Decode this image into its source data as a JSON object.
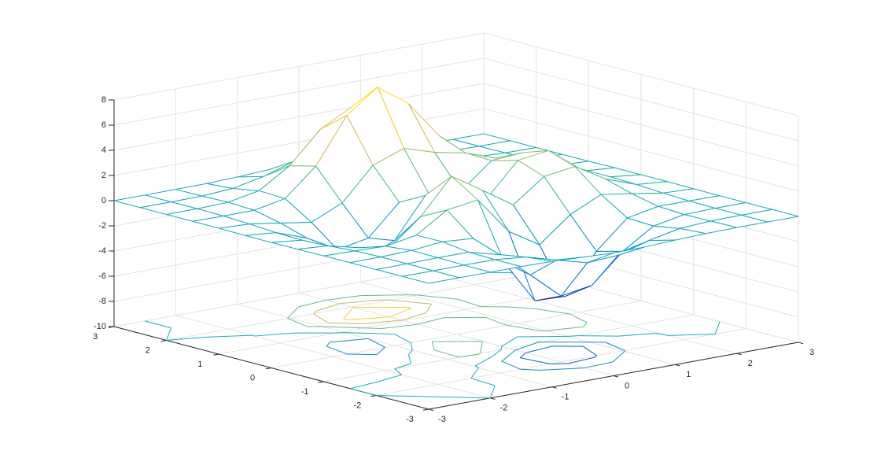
{
  "chart_data": {
    "type": "mesh",
    "x": [
      -3,
      -2.5,
      -2,
      -1.5,
      -1,
      -0.5,
      0,
      0.5,
      1,
      1.5,
      2,
      2.5,
      3
    ],
    "y": [
      -3,
      -2.5,
      -2,
      -1.5,
      -1,
      -0.5,
      0,
      0.5,
      1,
      1.5,
      2,
      2.5,
      3
    ],
    "z": [
      [
        0,
        0,
        0,
        0,
        -0.03,
        -0.14,
        -0.24,
        -0.22,
        -0.11,
        -0.03,
        0,
        0,
        0
      ],
      [
        0,
        0,
        0.01,
        0,
        -0.23,
        -0.91,
        -1.57,
        -1.41,
        -0.69,
        -0.18,
        -0.03,
        0,
        0
      ],
      [
        0,
        0.01,
        0.05,
        0.05,
        -0.59,
        -2.64,
        -4.76,
        -4.35,
        -2.1,
        -0.53,
        -0.06,
        0,
        0
      ],
      [
        0,
        0.01,
        0.08,
        0.33,
        0.15,
        -2.19,
        -5.68,
        -5.76,
        -2.64,
        -0.44,
        0.04,
        0.03,
        0
      ],
      [
        -0.01,
        -0.06,
        -0.13,
        0.3,
        1.86,
        2.22,
        -0.72,
        -2.22,
        -0.27,
        0.88,
        0.5,
        0.11,
        0.01
      ],
      [
        -0.03,
        -0.2,
        -0.8,
        -1.21,
        0.8,
        3.55,
        2,
        0.39,
        2.2,
        2.56,
        1.12,
        0.24,
        0.03
      ],
      [
        -0.04,
        -0.3,
        -1.33,
        -2.77,
        -1.65,
        1.48,
        0.98,
        0.37,
        2.94,
        3.27,
        1.41,
        0.3,
        0.03
      ],
      [
        -0.03,
        -0.25,
        -1.12,
        -2.49,
        -2,
        0.39,
        0.46,
        0.38,
        2.38,
        2.56,
        1.09,
        0.23,
        0.03
      ],
      [
        -0.01,
        -0.11,
        -0.48,
        -0.86,
        0.23,
        2.79,
        3.69,
        2.93,
        2.43,
        1.58,
        0.58,
        0.11,
        0.01
      ],
      [
        0,
        -0.02,
        -0.01,
        0.48,
        2.61,
        6.2,
        8,
        6.25,
        3.25,
        1.19,
        0.29,
        0.05,
        0
      ],
      [
        0,
        0.01,
        0.08,
        0.55,
        2.1,
        4.56,
        5.86,
        4.57,
        2.21,
        0.68,
        0.13,
        0.02,
        0
      ],
      [
        0,
        0,
        0.03,
        0.19,
        0.69,
        1.47,
        1.88,
        1.47,
        0.7,
        0.21,
        0.04,
        0,
        0
      ],
      [
        0,
        0,
        0.01,
        0.03,
        0.11,
        0.23,
        0.3,
        0.23,
        0.11,
        0.03,
        0.01,
        0,
        0
      ]
    ],
    "xlim": [
      -3,
      3
    ],
    "ylim": [
      -3,
      3
    ],
    "zlim": [
      -10,
      8
    ],
    "xticks": [
      -3,
      -2,
      -1,
      0,
      1,
      2,
      3
    ],
    "yticks": [
      -3,
      -2,
      -1,
      0,
      1,
      2,
      3
    ],
    "zticks": [
      -10,
      -8,
      -6,
      -4,
      -2,
      0,
      2,
      4,
      6,
      8
    ],
    "contour_levels": [
      -6,
      -4,
      -2,
      0,
      2,
      4,
      6
    ],
    "grid": true,
    "colormap": "parula"
  }
}
